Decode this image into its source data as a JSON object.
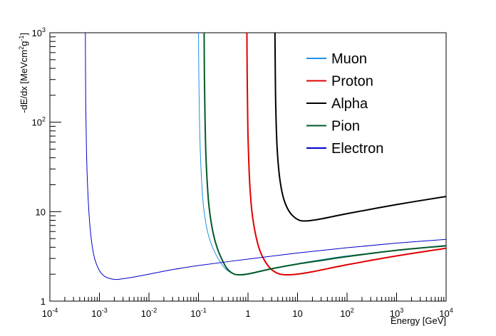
{
  "chart_data": {
    "type": "line",
    "title": "",
    "xlabel": "Energy [GeV]",
    "ylabel": {
      "prefix": "-dE/dx [MeVcm",
      "sup1": "2",
      "mid": "g",
      "sup2": "-1",
      "suffix": "]"
    },
    "xscale": "log",
    "yscale": "log",
    "xlim": [
      0.0001,
      10000
    ],
    "ylim": [
      1,
      1000
    ],
    "grid": false,
    "legend_position": "top-right",
    "x_ticks": [
      {
        "base": "10",
        "exp": "-4",
        "value": 0.0001
      },
      {
        "base": "10",
        "exp": "-3",
        "value": 0.001
      },
      {
        "base": "10",
        "exp": "-2",
        "value": 0.01
      },
      {
        "base": "10",
        "exp": "-1",
        "value": 0.1
      },
      {
        "base": "1",
        "exp": "",
        "value": 1
      },
      {
        "base": "10",
        "exp": "",
        "value": 10
      },
      {
        "base": "10",
        "exp": "2",
        "value": 100
      },
      {
        "base": "10",
        "exp": "3",
        "value": 1000
      },
      {
        "base": "10",
        "exp": "4",
        "value": 10000
      }
    ],
    "y_ticks": [
      {
        "base": "1",
        "exp": "",
        "value": 1
      },
      {
        "base": "10",
        "exp": "",
        "value": 10
      },
      {
        "base": "10",
        "exp": "2",
        "value": 100
      },
      {
        "base": "10",
        "exp": "3",
        "value": 1000
      }
    ],
    "series": [
      {
        "name": "Muon",
        "color": "#1e90e6",
        "x": [
          0.1,
          0.102,
          0.105,
          0.11,
          0.12,
          0.13,
          0.15,
          0.18,
          0.22,
          0.28,
          0.35,
          0.45,
          0.6,
          1,
          3,
          10,
          30,
          100,
          1000,
          10000
        ],
        "y": [
          1000,
          280,
          100,
          40,
          16,
          10,
          6.2,
          4.4,
          3.4,
          2.7,
          2.3,
          2.08,
          1.98,
          2.03,
          2.3,
          2.62,
          2.9,
          3.2,
          3.7,
          4.2
        ]
      },
      {
        "name": "Proton",
        "color": "#e00000",
        "x": [
          0.95,
          0.96,
          0.98,
          1.0,
          1.05,
          1.1,
          1.2,
          1.4,
          1.7,
          2.2,
          3.0,
          4.5,
          8,
          20,
          100,
          1000,
          10000
        ],
        "y": [
          1000,
          400,
          150,
          70,
          30,
          18,
          10,
          5.8,
          3.8,
          2.8,
          2.25,
          2.0,
          1.98,
          2.13,
          2.55,
          3.2,
          3.9
        ]
      },
      {
        "name": "Alpha",
        "color": "#000000",
        "x": [
          3.5,
          3.55,
          3.6,
          3.7,
          3.85,
          4.1,
          4.5,
          5.2,
          6.3,
          8,
          11,
          16,
          30,
          100,
          1000,
          10000
        ],
        "y": [
          1000,
          400,
          200,
          100,
          55,
          33,
          21,
          14.2,
          10.8,
          9.0,
          8.0,
          7.9,
          8.3,
          9.5,
          12,
          14.8
        ]
      },
      {
        "name": "Pion",
        "color": "#005a28",
        "x": [
          0.13,
          0.132,
          0.136,
          0.142,
          0.155,
          0.17,
          0.2,
          0.24,
          0.3,
          0.38,
          0.5,
          0.65,
          1,
          3,
          10,
          30,
          100,
          1000,
          10000
        ],
        "y": [
          1000,
          300,
          100,
          40,
          16,
          9.5,
          5.6,
          3.9,
          2.9,
          2.3,
          2.03,
          1.97,
          2.01,
          2.3,
          2.6,
          2.85,
          3.15,
          3.7,
          4.15
        ]
      },
      {
        "name": "Electron",
        "color": "#0000cc",
        "x": [
          0.00052,
          0.00053,
          0.00055,
          0.00058,
          0.00063,
          0.0007,
          0.0008,
          0.001,
          0.0013,
          0.002,
          0.003,
          0.005,
          0.01,
          0.03,
          0.1,
          1,
          10,
          100,
          1000,
          10000
        ],
        "y": [
          1000,
          150,
          45,
          18,
          8,
          4.5,
          3.0,
          2.2,
          1.88,
          1.75,
          1.78,
          1.86,
          2.0,
          2.25,
          2.5,
          2.95,
          3.45,
          3.95,
          4.45,
          4.9
        ]
      }
    ]
  }
}
